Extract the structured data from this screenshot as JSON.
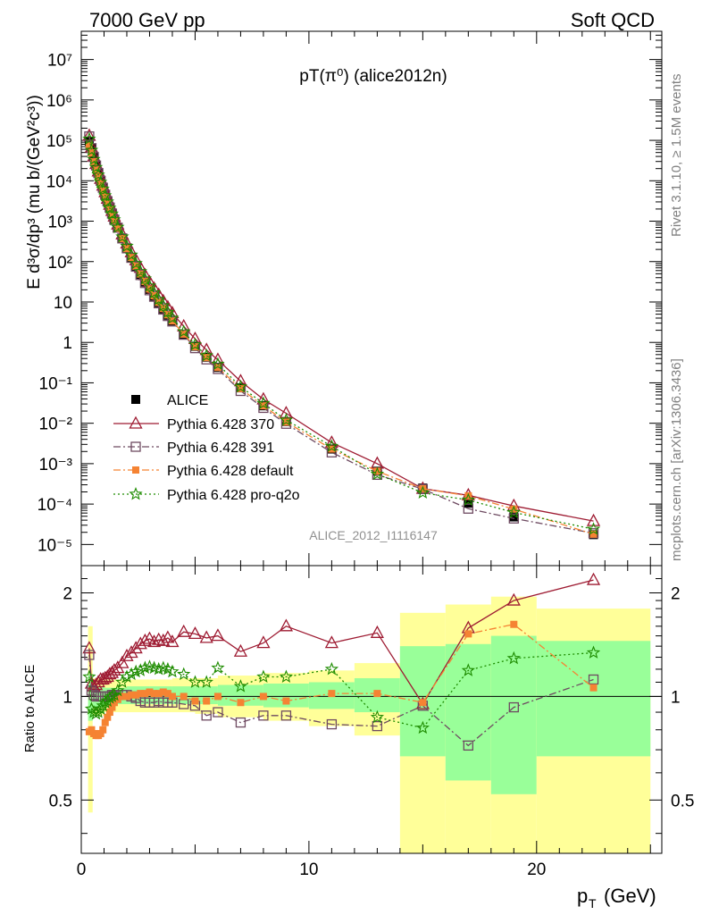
{
  "header": {
    "left": "7000 GeV pp",
    "right": "Soft QCD"
  },
  "side_labels": {
    "rivet": "Rivet 3.1.10, ≥ 1.5M events",
    "mcplots": "mcplots.cern.ch [arXiv:1306.3436]"
  },
  "plot_title": "pT(π⁰) (alice2012n)",
  "watermark": "ALICE_2012_I1116147",
  "colors": {
    "alice": "#000000",
    "p370": "#9e1b32",
    "p391": "#6e4a61",
    "pdefault": "#f58333",
    "proq2o": "#1e8c00",
    "band_outer": "#ffff99",
    "band_inner": "#99ff99"
  },
  "chart_data": [
    {
      "type": "scatter",
      "name": "main",
      "title": "pT(π⁰) (alice2012n)",
      "ylabel": "E d³σ/dp³ (mu b/(GeV²c³))",
      "xlabel": "",
      "yscale": "log",
      "xlim": [
        0,
        25.5
      ],
      "ylim": [
        3e-06,
        50000000.0
      ],
      "legend": "bottom-left",
      "y_tick_labels": [
        "10⁻⁵",
        "10⁻⁴",
        "10⁻³",
        "10⁻²",
        "10⁻¹",
        "1",
        "10",
        "10²",
        "10³",
        "10⁴",
        "10⁵",
        "10⁶",
        "10⁷"
      ],
      "x": [
        0.35,
        0.45,
        0.55,
        0.65,
        0.75,
        0.85,
        0.95,
        1.05,
        1.15,
        1.25,
        1.35,
        1.45,
        1.6,
        1.8,
        2.0,
        2.2,
        2.4,
        2.6,
        2.8,
        3.0,
        3.2,
        3.4,
        3.6,
        3.8,
        4.0,
        4.5,
        5.0,
        5.5,
        6.0,
        7.0,
        8.0,
        9.0,
        11.0,
        13.0,
        15.0,
        17.0,
        19.0,
        22.5
      ],
      "series": [
        {
          "name": "ALICE",
          "color": "#000000",
          "marker": "square",
          "values": [
            95000,
            62000,
            38000,
            24000,
            15500,
            10000,
            6700,
            4500,
            3100,
            2150,
            1520,
            1080,
            680,
            370,
            210,
            125,
            76,
            48,
            31,
            20.5,
            14,
            9.6,
            6.7,
            4.7,
            3.4,
            1.6,
            0.8,
            0.43,
            0.24,
            0.075,
            0.027,
            0.011,
            0.0023,
            0.00065,
            0.00025,
            0.000105,
            4.8e-05,
            1.75e-05
          ]
        },
        {
          "name": "Pythia 6.428 370",
          "color": "#9e1b32",
          "marker": "triangle",
          "values": [
            130000,
            67000,
            40000,
            26000,
            17000,
            11200,
            7600,
            5200,
            3600,
            2550,
            1800,
            1300,
            830,
            470,
            280,
            170,
            108,
            70,
            46,
            31,
            21.5,
            15,
            10.5,
            7.4,
            5.3,
            2.5,
            1.22,
            0.65,
            0.37,
            0.11,
            0.039,
            0.0177,
            0.0033,
            0.001,
            0.00024,
            0.000165,
            9e-05,
            3.8e-05
          ]
        },
        {
          "name": "Pythia 6.428 391",
          "color": "#6e4a61",
          "marker": "open-square",
          "values": [
            125000,
            64000,
            38500,
            23800,
            15500,
            10000,
            6700,
            4500,
            3120,
            2170,
            1540,
            1090,
            690,
            375,
            213,
            124,
            75,
            46.5,
            29.5,
            19.5,
            13.5,
            9.3,
            6.5,
            4.5,
            3.3,
            1.55,
            0.72,
            0.38,
            0.22,
            0.063,
            0.024,
            0.0097,
            0.0019,
            0.00053,
            0.000235,
            7.7e-05,
            4.4e-05,
            1.9e-05
          ]
        },
        {
          "name": "Pythia 6.428 default",
          "color": "#f58333",
          "marker": "filled-square",
          "values": [
            75000,
            49000,
            29500,
            18500,
            12100,
            8000,
            5600,
            3800,
            2700,
            1950,
            1420,
            1040,
            670,
            370,
            210,
            126,
            77,
            49,
            32,
            21,
            14.3,
            9.8,
            6.9,
            4.8,
            3.4,
            1.6,
            0.78,
            0.42,
            0.24,
            0.072,
            0.027,
            0.0107,
            0.0023,
            0.00065,
            0.00024,
            0.00016,
            7.5e-05,
            1.8e-05
          ]
        },
        {
          "name": "Pythia 6.428 pro-q2o",
          "color": "#1e8c00",
          "marker": "star",
          "values": [
            108000,
            57000,
            34000,
            21500,
            14000,
            9200,
            6300,
            4300,
            3000,
            2120,
            1510,
            1090,
            710,
            410,
            240,
            145,
            90,
            57,
            37.5,
            25,
            17,
            11.6,
            8.1,
            5.6,
            4.0,
            1.85,
            0.88,
            0.47,
            0.29,
            0.08,
            0.031,
            0.012,
            0.0027,
            0.00055,
            0.00019,
            0.000126,
            6.2e-05,
            2.4e-05
          ]
        }
      ]
    },
    {
      "type": "scatter",
      "name": "ratio",
      "ylabel": "Ratio to ALICE",
      "xlabel": "p_T (GeV)",
      "xlim": [
        0,
        25.5
      ],
      "ylim": [
        0.35,
        2.4
      ],
      "yscale": "log",
      "x_tick_labels": [
        "0",
        "10",
        "20"
      ],
      "y_tick_labels": [
        "0.5",
        "1",
        "2"
      ],
      "x": [
        0.35,
        0.45,
        0.55,
        0.65,
        0.75,
        0.85,
        0.95,
        1.05,
        1.15,
        1.25,
        1.35,
        1.45,
        1.6,
        1.8,
        2.0,
        2.2,
        2.4,
        2.6,
        2.8,
        3.0,
        3.2,
        3.4,
        3.6,
        3.8,
        4.0,
        4.5,
        5.0,
        5.5,
        6.0,
        7.0,
        8.0,
        9.0,
        11.0,
        13.0,
        15.0,
        17.0,
        19.0,
        22.5
      ],
      "bands": [
        {
          "xmin": 0.3,
          "xmax": 0.5,
          "outer": [
            0.46,
            1.6
          ],
          "inner": [
            0.85,
            1.16
          ]
        },
        {
          "xmin": 0.5,
          "xmax": 1.0,
          "outer": [
            0.88,
            1.13
          ],
          "inner": [
            0.93,
            1.07
          ]
        },
        {
          "xmin": 1.0,
          "xmax": 2.0,
          "outer": [
            0.9,
            1.12
          ],
          "inner": [
            0.95,
            1.06
          ]
        },
        {
          "xmin": 2.0,
          "xmax": 3.0,
          "outer": [
            0.9,
            1.12
          ],
          "inner": [
            0.95,
            1.07
          ]
        },
        {
          "xmin": 3.0,
          "xmax": 4.0,
          "outer": [
            0.9,
            1.12
          ],
          "inner": [
            0.95,
            1.07
          ]
        },
        {
          "xmin": 4.0,
          "xmax": 5.0,
          "outer": [
            0.9,
            1.13
          ],
          "inner": [
            0.95,
            1.07
          ]
        },
        {
          "xmin": 5.0,
          "xmax": 6.0,
          "outer": [
            0.89,
            1.13
          ],
          "inner": [
            0.95,
            1.07
          ]
        },
        {
          "xmin": 6.0,
          "xmax": 8.0,
          "outer": [
            0.87,
            1.15
          ],
          "inner": [
            0.94,
            1.08
          ]
        },
        {
          "xmin": 8.0,
          "xmax": 10.0,
          "outer": [
            0.85,
            1.17
          ],
          "inner": [
            0.93,
            1.09
          ]
        },
        {
          "xmin": 10.0,
          "xmax": 12.0,
          "outer": [
            0.82,
            1.19
          ],
          "inner": [
            0.92,
            1.1
          ]
        },
        {
          "xmin": 12.0,
          "xmax": 14.0,
          "outer": [
            0.77,
            1.25
          ],
          "inner": [
            0.9,
            1.13
          ]
        },
        {
          "xmin": 14.0,
          "xmax": 16.0,
          "outer": [
            0.3,
            1.75
          ],
          "inner": [
            0.67,
            1.4
          ]
        },
        {
          "xmin": 16.0,
          "xmax": 18.0,
          "outer": [
            0.3,
            1.85
          ],
          "inner": [
            0.57,
            1.42
          ]
        },
        {
          "xmin": 18.0,
          "xmax": 20.0,
          "outer": [
            0.3,
            1.95
          ],
          "inner": [
            0.52,
            1.5
          ]
        },
        {
          "xmin": 20.0,
          "xmax": 25.0,
          "outer": [
            0.3,
            1.8
          ],
          "inner": [
            0.67,
            1.45
          ]
        }
      ],
      "series": [
        {
          "name": "Pythia 6.428 370",
          "color": "#9e1b32",
          "marker": "triangle",
          "values": [
            1.38,
            1.09,
            1.07,
            1.08,
            1.1,
            1.12,
            1.12,
            1.13,
            1.14,
            1.16,
            1.17,
            1.19,
            1.21,
            1.25,
            1.31,
            1.34,
            1.38,
            1.42,
            1.45,
            1.47,
            1.44,
            1.46,
            1.45,
            1.48,
            1.44,
            1.54,
            1.52,
            1.48,
            1.5,
            1.35,
            1.43,
            1.6,
            1.43,
            1.53,
            0.95,
            1.58,
            1.9,
            2.18
          ]
        },
        {
          "name": "Pythia 6.428 391",
          "color": "#6e4a61",
          "marker": "open-square",
          "values": [
            1.32,
            1.04,
            1.01,
            1.0,
            1.0,
            1.0,
            1.0,
            1.0,
            1.0,
            1.0,
            1.01,
            1.01,
            1.01,
            1.01,
            1.01,
            1.0,
            0.99,
            0.97,
            0.96,
            0.96,
            0.96,
            0.97,
            0.96,
            0.96,
            0.96,
            0.95,
            0.94,
            0.88,
            0.9,
            0.84,
            0.88,
            0.88,
            0.83,
            0.82,
            0.94,
            0.72,
            0.93,
            1.12
          ]
        },
        {
          "name": "Pythia 6.428 default",
          "color": "#f58333",
          "marker": "filled-square",
          "values": [
            0.79,
            0.8,
            0.78,
            0.77,
            0.77,
            0.78,
            0.8,
            0.84,
            0.87,
            0.9,
            0.93,
            0.96,
            0.98,
            1.0,
            1.0,
            1.01,
            1.01,
            1.02,
            1.02,
            1.03,
            1.02,
            1.02,
            1.03,
            1.02,
            1.0,
            1.0,
            0.97,
            0.97,
            1.0,
            0.96,
            1.0,
            0.97,
            1.02,
            1.02,
            0.96,
            1.52,
            1.62,
            1.06
          ]
        },
        {
          "name": "Pythia 6.428 pro-q2o",
          "color": "#1e8c00",
          "marker": "star",
          "values": [
            1.14,
            0.92,
            0.9,
            0.89,
            0.9,
            0.92,
            0.94,
            0.96,
            0.97,
            0.99,
            1.0,
            1.01,
            1.04,
            1.1,
            1.14,
            1.16,
            1.18,
            1.19,
            1.21,
            1.22,
            1.21,
            1.2,
            1.21,
            1.2,
            1.18,
            1.16,
            1.1,
            1.1,
            1.21,
            1.07,
            1.14,
            1.14,
            1.2,
            0.87,
            0.81,
            1.19,
            1.29,
            1.34
          ]
        }
      ]
    }
  ]
}
